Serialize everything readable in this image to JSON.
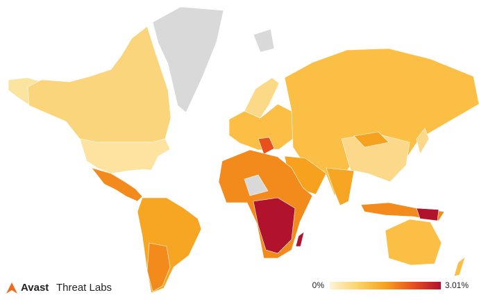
{
  "brand": {
    "name": "Avast",
    "product": "Threat Labs"
  },
  "legend": {
    "min": {
      "value": 0,
      "label": "0%"
    },
    "max": {
      "value": 3.01,
      "label": "3.01%"
    },
    "colors": [
      "#fdf3d6",
      "#fbd46a",
      "#f6a21e",
      "#e8501e",
      "#b1122c"
    ]
  }
}
